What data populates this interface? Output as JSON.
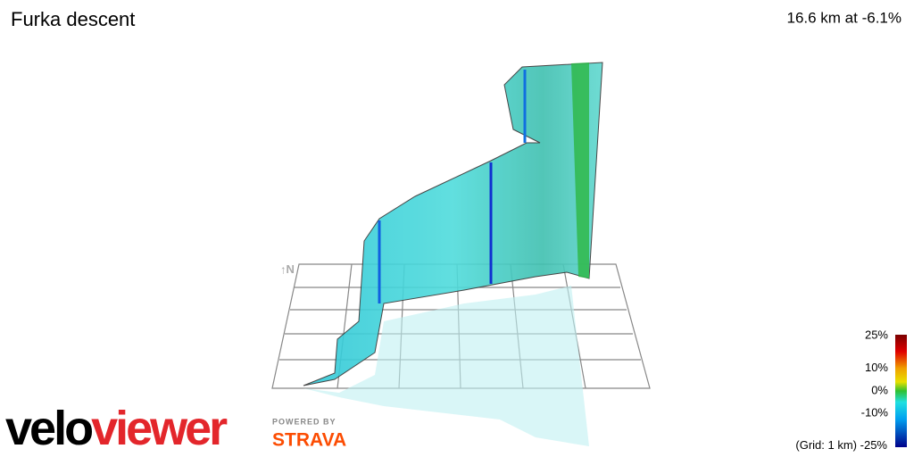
{
  "header": {
    "title": "Furka descent",
    "summary": "16.6 km at -6.1%"
  },
  "compass": "N",
  "legend": {
    "ticks": [
      {
        "value": 25,
        "label": "25%"
      },
      {
        "value": 10,
        "label": "10%"
      },
      {
        "value": 0,
        "label": "0%"
      },
      {
        "value": -10,
        "label": "-10%"
      },
      {
        "value": -25,
        "label": "-25%"
      }
    ],
    "range": [
      -25,
      25
    ],
    "note": "(Grid: 1 km)"
  },
  "logo": {
    "velo": "velo",
    "viewer": "viewer",
    "powered": "POWERED BY",
    "strava": "STRAVA"
  }
}
